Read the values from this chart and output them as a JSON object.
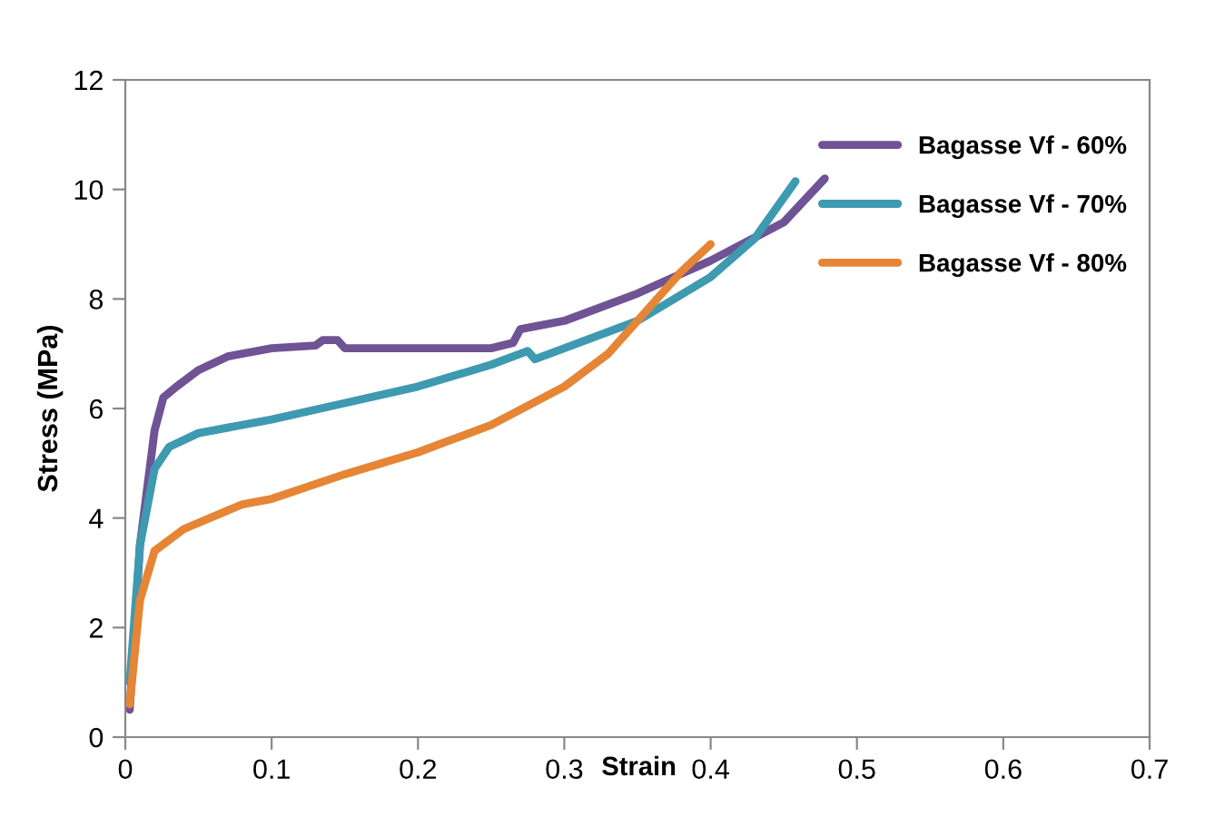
{
  "chart_data": {
    "type": "line",
    "xlabel": "Strain",
    "ylabel": "Stress (MPa)",
    "xlim": [
      0,
      0.7
    ],
    "ylim": [
      0,
      12
    ],
    "xticks": [
      0,
      0.1,
      0.2,
      0.3,
      0.4,
      0.5,
      0.6,
      0.7
    ],
    "yticks": [
      0,
      2,
      4,
      6,
      8,
      10,
      12
    ],
    "grid": false,
    "legend": "top right",
    "line_style": "solid",
    "marker": "none",
    "series": [
      {
        "name": "Bagasse Vf - 60%",
        "color": "#6f5394",
        "x": [
          0.003,
          0.01,
          0.02,
          0.026,
          0.035,
          0.05,
          0.07,
          0.1,
          0.13,
          0.135,
          0.145,
          0.15,
          0.2,
          0.25,
          0.265,
          0.27,
          0.3,
          0.35,
          0.4,
          0.45,
          0.478
        ],
        "values": [
          0.5,
          3.5,
          5.6,
          6.2,
          6.4,
          6.7,
          6.95,
          7.1,
          7.15,
          7.25,
          7.25,
          7.1,
          7.1,
          7.1,
          7.2,
          7.45,
          7.6,
          8.1,
          8.7,
          9.4,
          10.2
        ]
      },
      {
        "name": "Bagasse Vf - 70%",
        "color": "#3d9ab0",
        "x": [
          0.003,
          0.01,
          0.02,
          0.03,
          0.05,
          0.1,
          0.15,
          0.2,
          0.25,
          0.275,
          0.28,
          0.3,
          0.35,
          0.4,
          0.43,
          0.458
        ],
        "values": [
          1.0,
          3.5,
          4.9,
          5.3,
          5.55,
          5.8,
          6.1,
          6.4,
          6.8,
          7.05,
          6.9,
          7.1,
          7.6,
          8.4,
          9.1,
          10.15
        ]
      },
      {
        "name": "Bagasse Vf - 80%",
        "color": "#e58535",
        "x": [
          0.003,
          0.01,
          0.02,
          0.04,
          0.08,
          0.1,
          0.15,
          0.2,
          0.22,
          0.25,
          0.3,
          0.33,
          0.36,
          0.38,
          0.4
        ],
        "values": [
          0.6,
          2.5,
          3.4,
          3.8,
          4.25,
          4.35,
          4.8,
          5.2,
          5.4,
          5.7,
          6.4,
          7.0,
          7.9,
          8.5,
          9.0
        ]
      }
    ]
  }
}
